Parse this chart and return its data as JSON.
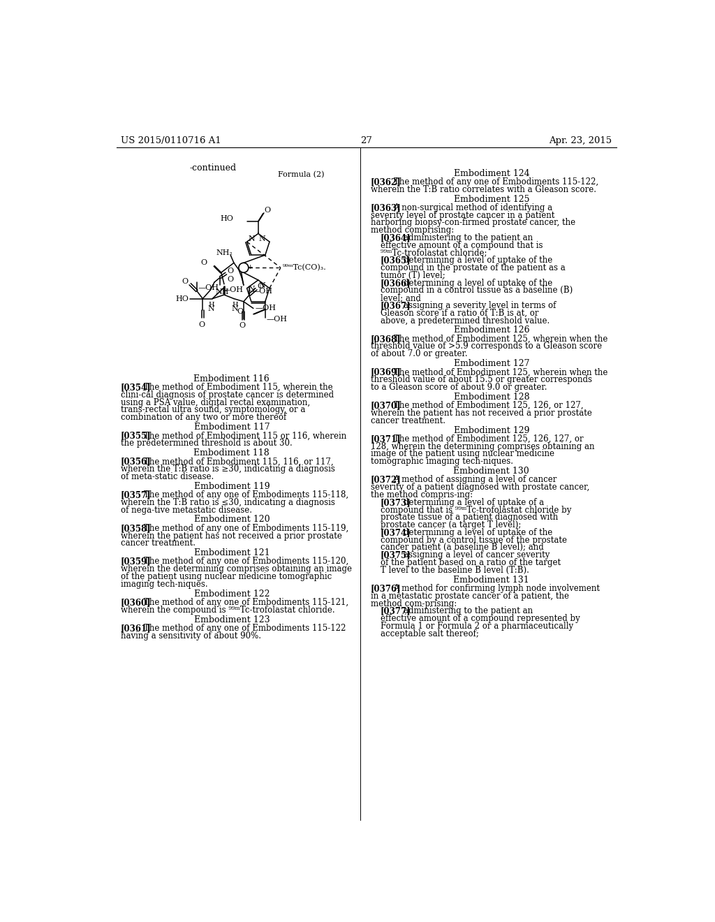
{
  "page_number": "27",
  "patent_number": "US 2015/0110716 A1",
  "patent_date": "Apr. 23, 2015",
  "background_color": "#ffffff",
  "left_col_embodiments": [
    {
      "title": "Embodiment 116",
      "ref": "[0354]",
      "text": "The method of Embodiment 115, wherein the clini-cal diagnosis of prostate cancer is determined using a PSA value, digital rectal examination, trans-rectal ultra sound, symptomology, or a combination of any two or more thereof"
    },
    {
      "title": "Embodiment 117",
      "ref": "[0355]",
      "text": "The method of Embodiment 115 or 116, wherein the predetermined threshold is about 30."
    },
    {
      "title": "Embodiment 118",
      "ref": "[0356]",
      "text": "The method of Embodiment 115, 116, or 117, wherein the T:B ratio is ≥30, indicating a diagnosis of meta-static disease."
    },
    {
      "title": "Embodiment 119",
      "ref": "[0357]",
      "text": "The method of any one of Embodiments 115-118, wherein the T:B ratio is ≤30, indicating a diagnosis of nega-tive metastatic disease."
    },
    {
      "title": "Embodiment 120",
      "ref": "[0358]",
      "text": "The method of any one of Embodiments 115-119, wherein the patient has not received a prior prostate cancer treatment."
    },
    {
      "title": "Embodiment 121",
      "ref": "[0359]",
      "text": "The method of any one of Embodiments 115-120, wherein the determining comprises obtaining an image of the patient using nuclear medicine tomographic imaging tech-niques."
    },
    {
      "title": "Embodiment 122",
      "ref": "[0360]",
      "text": "The method of any one of Embodiments 115-121, wherein the compound is ⁹⁹ᵐTc-trofolastat chloride."
    },
    {
      "title": "Embodiment 123",
      "ref": "[0361]",
      "text": "The method of any one of Embodiments 115-122 having a sensitivity of about 90%."
    }
  ],
  "right_col_embodiments": [
    {
      "title": "Embodiment 124",
      "ref": "[0362]",
      "text": "The method of any one of Embodiments 115-122, wherein the T:B ratio correlates with a Gleason score.",
      "subitems": []
    },
    {
      "title": "Embodiment 125",
      "ref": "[0363]",
      "text": "A non-surgical method of identifying a severity level of prostate cancer in a patient harboring biopsy-con-firmed prostate cancer, the method comprising:",
      "subitems": [
        {
          "ref": "[0364]",
          "text": "administering to the patient an effective amount of a compound that is ⁹⁹ᵐTc-trofolastat chloride;"
        },
        {
          "ref": "[0365]",
          "text": "determining a level of uptake of the compound in the prostate of the patient as a tumor (T) level;"
        },
        {
          "ref": "[0366]",
          "text": "determining a level of uptake of the compound in a control tissue as a baseline (B) level; and"
        },
        {
          "ref": "[0367]",
          "text": "assigning a severity level in terms of Gleason score if a ratio of T:B is at, or above, a predetermined threshold value."
        }
      ]
    },
    {
      "title": "Embodiment 126",
      "ref": "[0368]",
      "text": "The method of Embodiment 125, wherein when the threshold value of >5.9 corresponds to a Gleason score of about 7.0 or greater.",
      "subitems": []
    },
    {
      "title": "Embodiment 127",
      "ref": "[0369]",
      "text": "The method of Embodiment 125, wherein when the threshold value of about 15.5 or greater corresponds to a Gleason score of about 9.0 or greater.",
      "subitems": []
    },
    {
      "title": "Embodiment 128",
      "ref": "[0370]",
      "text": "The method of Embodiment 125, 126, or 127, wherein the patient has not received a prior prostate cancer treatment.",
      "subitems": []
    },
    {
      "title": "Embodiment 129",
      "ref": "[0371]",
      "text": "The method of Embodiment 125, 126, 127, or 128, wherein the determining comprises obtaining an image of the patient using nuclear medicine tomographic imaging tech-niques.",
      "subitems": []
    },
    {
      "title": "Embodiment 130",
      "ref": "[0372]",
      "text": "A method of assigning a level of cancer severity of a patient diagnosed with prostate cancer, the method compris-ing:",
      "subitems": [
        {
          "ref": "[0373]",
          "text": "determining a level of uptake of a compound that is ⁹⁹ᵐTc-trofolastat chloride by prostate tissue of a patient diagnosed with prostate cancer (a target T level);"
        },
        {
          "ref": "[0374]",
          "text": "determining a level of uptake of the compound by a control tissue of the prostate cancer patient (a baseline B level); and"
        },
        {
          "ref": "[0375]",
          "text": "assigning a level of cancer severity of the patient based on a ratio of the target T level to the baseline B level (T:B)."
        }
      ]
    },
    {
      "title": "Embodiment 131",
      "ref": "[0376]",
      "text": "A method for confirming lymph node involvement in a metastatic prostate cancer of a patient, the method com-prising:",
      "subitems": [
        {
          "ref": "[0377]",
          "text": "administering to the patient an effective amount of a compound represented by Formula 1 or Formula 2 or a pharmaceutically acceptable salt thereof;"
        }
      ]
    }
  ]
}
